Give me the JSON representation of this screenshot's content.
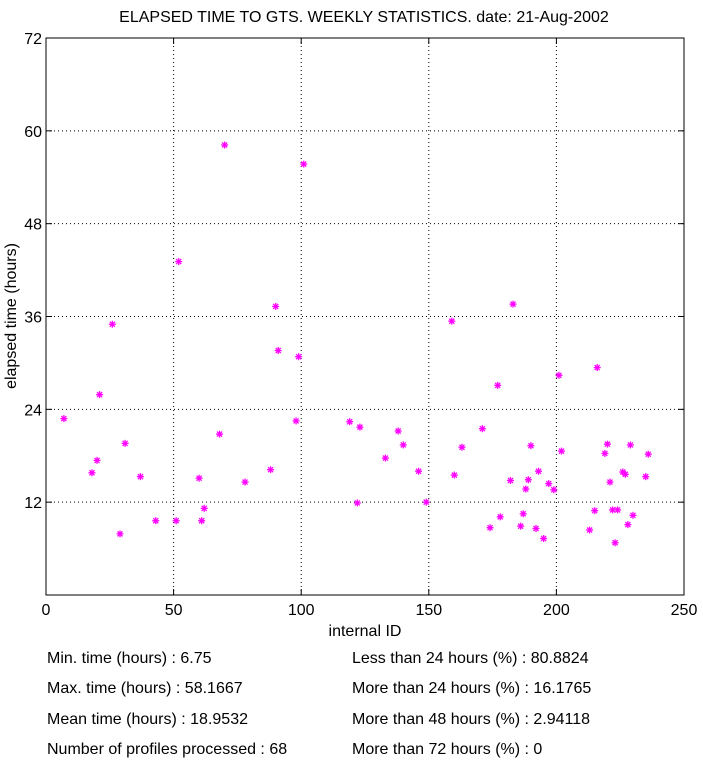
{
  "chart_data": {
    "type": "scatter",
    "title": "ELAPSED TIME TO GTS. WEEKLY STATISTICS.  date: 21-Aug-2002",
    "xlabel": "internal ID",
    "ylabel": "elapsed time (hours)",
    "xlim": [
      0,
      250
    ],
    "ylim": [
      0,
      72
    ],
    "xticks": [
      0,
      50,
      100,
      150,
      200,
      250
    ],
    "yticks": [
      12,
      24,
      36,
      48,
      60,
      72
    ],
    "grid": true,
    "marker": "*",
    "color": "#ff00ff",
    "points": [
      [
        7,
        22.8
      ],
      [
        18,
        15.8
      ],
      [
        20,
        17.4
      ],
      [
        21,
        25.9
      ],
      [
        26,
        35.0
      ],
      [
        29,
        7.9
      ],
      [
        31,
        19.6
      ],
      [
        37,
        15.3
      ],
      [
        43,
        9.6
      ],
      [
        51,
        9.6
      ],
      [
        52,
        43.1
      ],
      [
        60,
        15.1
      ],
      [
        61,
        9.6
      ],
      [
        62,
        11.2
      ],
      [
        68,
        20.8
      ],
      [
        70,
        58.17
      ],
      [
        78,
        14.6
      ],
      [
        88,
        16.2
      ],
      [
        90,
        37.3
      ],
      [
        91,
        31.6
      ],
      [
        98,
        22.5
      ],
      [
        99,
        30.8
      ],
      [
        101,
        55.7
      ],
      [
        119,
        22.4
      ],
      [
        122,
        11.9
      ],
      [
        123,
        21.7
      ],
      [
        133,
        17.7
      ],
      [
        138,
        21.2
      ],
      [
        140,
        19.4
      ],
      [
        146,
        16.0
      ],
      [
        149,
        12.0
      ],
      [
        159,
        35.4
      ],
      [
        160,
        15.5
      ],
      [
        163,
        19.1
      ],
      [
        171,
        21.5
      ],
      [
        174,
        8.7
      ],
      [
        177,
        27.1
      ],
      [
        178,
        10.1
      ],
      [
        182,
        14.8
      ],
      [
        183,
        37.6
      ],
      [
        186,
        8.9
      ],
      [
        187,
        10.5
      ],
      [
        188,
        13.7
      ],
      [
        189,
        14.9
      ],
      [
        190,
        19.3
      ],
      [
        192,
        8.6
      ],
      [
        193,
        16.0
      ],
      [
        195,
        7.3
      ],
      [
        197,
        14.4
      ],
      [
        199,
        13.6
      ],
      [
        201,
        28.4
      ],
      [
        202,
        18.6
      ],
      [
        213,
        8.4
      ],
      [
        215,
        10.9
      ],
      [
        216,
        29.4
      ],
      [
        219,
        18.3
      ],
      [
        220,
        19.5
      ],
      [
        221,
        14.6
      ],
      [
        222,
        11.0
      ],
      [
        223,
        6.75
      ],
      [
        224,
        11.0
      ],
      [
        226,
        15.9
      ],
      [
        227,
        15.6
      ],
      [
        228,
        9.1
      ],
      [
        229,
        19.4
      ],
      [
        230,
        10.3
      ],
      [
        235,
        15.3
      ],
      [
        236,
        18.2
      ]
    ]
  },
  "stats": {
    "min_time": "Min. time (hours) : 6.75",
    "max_time": "Max. time (hours) : 58.1667",
    "mean_time": "Mean time (hours) : 18.9532",
    "num_profiles": "Number of profiles processed : 68",
    "lt24": "Less than 24 hours (%) : 80.8824",
    "gt24": "More than 24 hours (%) : 16.1765",
    "gt48": "More than 48 hours (%) : 2.94118",
    "gt72": "More than 72 hours (%) : 0"
  }
}
